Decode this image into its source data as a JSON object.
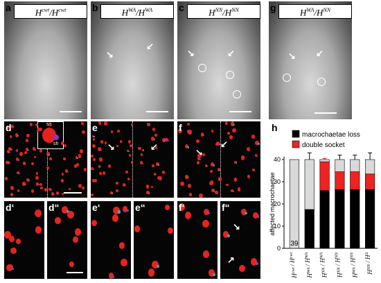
{
  "panels": {
    "a": {
      "label": "a",
      "title_base": "H",
      "title_sup1": "cwt",
      "title_sep": "/H",
      "title_sup2": "cwt"
    },
    "b": {
      "label": "b",
      "title_base": "H",
      "title_sup1": "WA",
      "title_sep": "/H",
      "title_sup2": "WA"
    },
    "c": {
      "label": "c",
      "title_base": "H",
      "title_sup1": "NN",
      "title_sep": "/H",
      "title_sup2": "NN"
    },
    "g": {
      "label": "g",
      "title_base": "H",
      "title_sup1": "WA",
      "title_sep": "/H",
      "title_sup2": "NN"
    },
    "d": {
      "label": "d",
      "inset_so": "so",
      "inset_sh": "sh"
    },
    "e": {
      "label": "e"
    },
    "f": {
      "label": "f"
    },
    "d1": {
      "label": "d‘"
    },
    "d2": {
      "label": "d“"
    },
    "e1": {
      "label": "e‘"
    },
    "e2": {
      "label": "e“"
    },
    "f1": {
      "label": "f‘"
    },
    "f2": {
      "label": "f“"
    },
    "h": {
      "label": "h"
    }
  },
  "chart_data": {
    "type": "bar",
    "stacked": true,
    "categories": [
      "H^cwt / H^cwt",
      "H^WA / H^WA",
      "H^NN / H^WA",
      "H^NN / H^NN",
      "H^WA / H^NN",
      "H^NN / H^Δ"
    ],
    "category_labels": [
      {
        "base1": "H",
        "sup1": "cwt",
        "sep": " / ",
        "base2": "H",
        "sup2": "cwt"
      },
      {
        "base1": "H",
        "sup1": "WA",
        "sep": " / ",
        "base2": "H",
        "sup2": "WA"
      },
      {
        "base1": "H",
        "sup1": "NN",
        "sep": " / ",
        "base2": "H",
        "sup2": "WA"
      },
      {
        "base1": "H",
        "sup1": "NN",
        "sep": " / ",
        "base2": "H",
        "sup2": "NN"
      },
      {
        "base1": "H",
        "sup1": "WA",
        "sep": " / ",
        "base2": "H",
        "sup2": "NN"
      },
      {
        "base1": "H",
        "sup1": "NN",
        "sep": " / ",
        "base2": "H",
        "sup2": "Δ"
      }
    ],
    "series": [
      {
        "name": "macrochaetae loss",
        "color": "#000000",
        "values": [
          0,
          17.5,
          26,
          26.5,
          26.5,
          26.5
        ],
        "errors": [
          0,
          2.5,
          2.5,
          2.5,
          1.5,
          1.5
        ]
      },
      {
        "name": "double socket",
        "color": "#ee2222",
        "values": [
          0,
          0,
          13,
          8,
          8,
          7
        ],
        "errors": [
          0,
          0,
          1.5,
          3,
          3,
          2.5
        ]
      },
      {
        "name": "",
        "color": "#d9d9d9",
        "values": [
          40,
          22.5,
          1,
          5.5,
          5.5,
          6.5
        ],
        "errors": [
          0,
          3,
          0,
          2,
          2,
          3
        ]
      }
    ],
    "bar_annotation": "39",
    "ylabel": "affected macrochaetae",
    "ylim": [
      0,
      40
    ],
    "yticks": [
      0,
      10,
      20,
      30,
      40
    ],
    "legend_position": "top",
    "colors": {
      "loss": "#000000",
      "double_socket": "#ee2222",
      "unaffected": "#d9d9d9",
      "error_red": "#e02020"
    }
  }
}
